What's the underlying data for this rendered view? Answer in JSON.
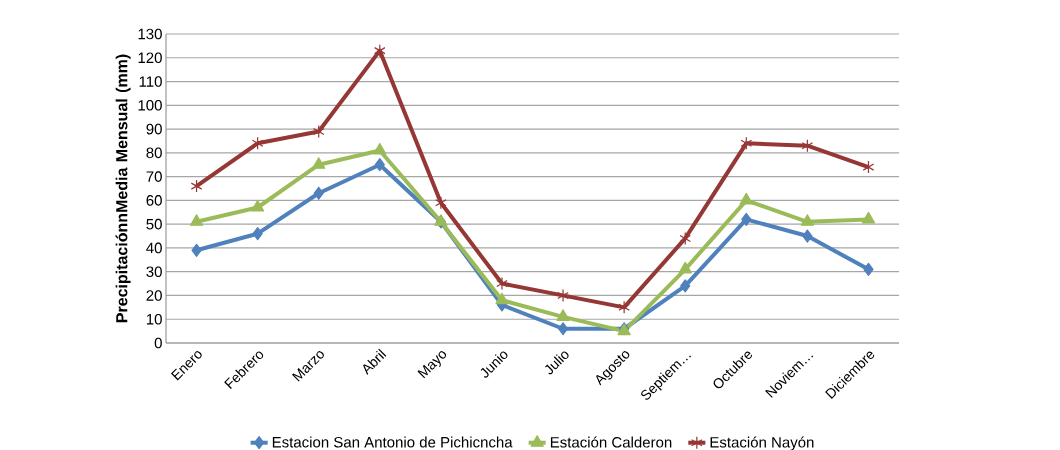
{
  "chart_data": {
    "type": "line",
    "ylabel": "PrecipitaciónnMedia Mensual (mm)",
    "categories": [
      "Enero",
      "Febrero",
      "Marzo",
      "Abril",
      "Mayo",
      "Junio",
      "Julio",
      "Agosto",
      "Septiem…",
      "Octubre",
      "Noviem…",
      "Diciembre"
    ],
    "series": [
      {
        "name": "Estacion San Antonio de Pichicncha",
        "color": "#4f81bd",
        "marker": "diamond",
        "values": [
          39,
          46,
          63,
          75,
          51,
          16,
          6,
          6,
          24,
          52,
          45,
          31
        ]
      },
      {
        "name": "Estación Calderon",
        "color": "#9bbb59",
        "marker": "triangle",
        "values": [
          51,
          57,
          75,
          81,
          51,
          18,
          11,
          5,
          31,
          60,
          51,
          52
        ]
      },
      {
        "name": "Estación Nayón",
        "color": "#953735",
        "marker": "cross",
        "values": [
          66,
          84,
          89,
          123,
          59,
          25,
          20,
          15,
          44,
          84,
          83,
          74
        ]
      }
    ],
    "ylim": [
      0,
      130
    ],
    "yticks": [
      0,
      10,
      20,
      30,
      40,
      50,
      60,
      70,
      80,
      90,
      100,
      110,
      120,
      130
    ],
    "grid": "y",
    "legend": "bottom",
    "line_style": "solid"
  }
}
